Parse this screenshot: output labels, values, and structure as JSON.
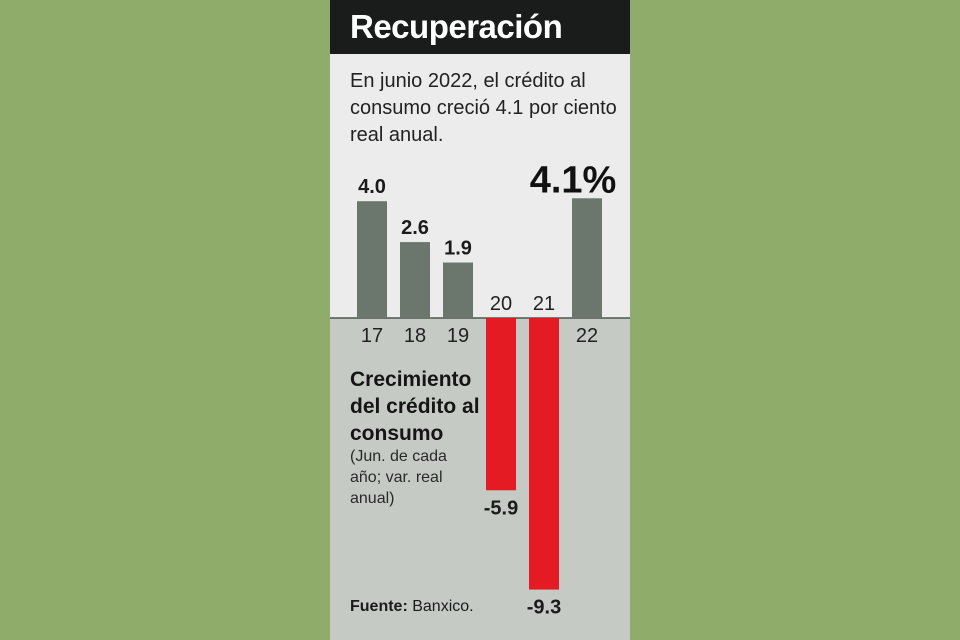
{
  "card": {
    "title": "Recuperación",
    "subtitle": "En junio 2022, el crédito al consumo creció 4.1 por ciento real anual.",
    "legend_title": "Crecimiento del crédito al consumo",
    "legend_note": "(Jun. de cada año; var. real anual)",
    "source_label": "Fuente:",
    "source_value": "Banxico."
  },
  "colors": {
    "positive_bar": "#6b776c",
    "negative_bar": "#e51b24",
    "upper_panel": "#ececec",
    "lower_panel": "#c5cbc4",
    "title_bar": "#1a1c1c",
    "background": "#8fac6b"
  },
  "chart_data": {
    "type": "bar",
    "categories": [
      "17",
      "18",
      "19",
      "20",
      "21",
      "22"
    ],
    "values": [
      4.0,
      2.6,
      1.9,
      -5.9,
      -9.3,
      4.1
    ],
    "value_labels": [
      "4.0",
      "2.6",
      "1.9",
      "-5.9",
      "-9.3",
      "4.1%"
    ],
    "highlight_index": 5,
    "title": "Crecimiento del crédito al consumo",
    "xlabel": "",
    "ylabel": "",
    "ylim": [
      -9.3,
      4.1
    ],
    "grid": false,
    "legend": "none"
  }
}
